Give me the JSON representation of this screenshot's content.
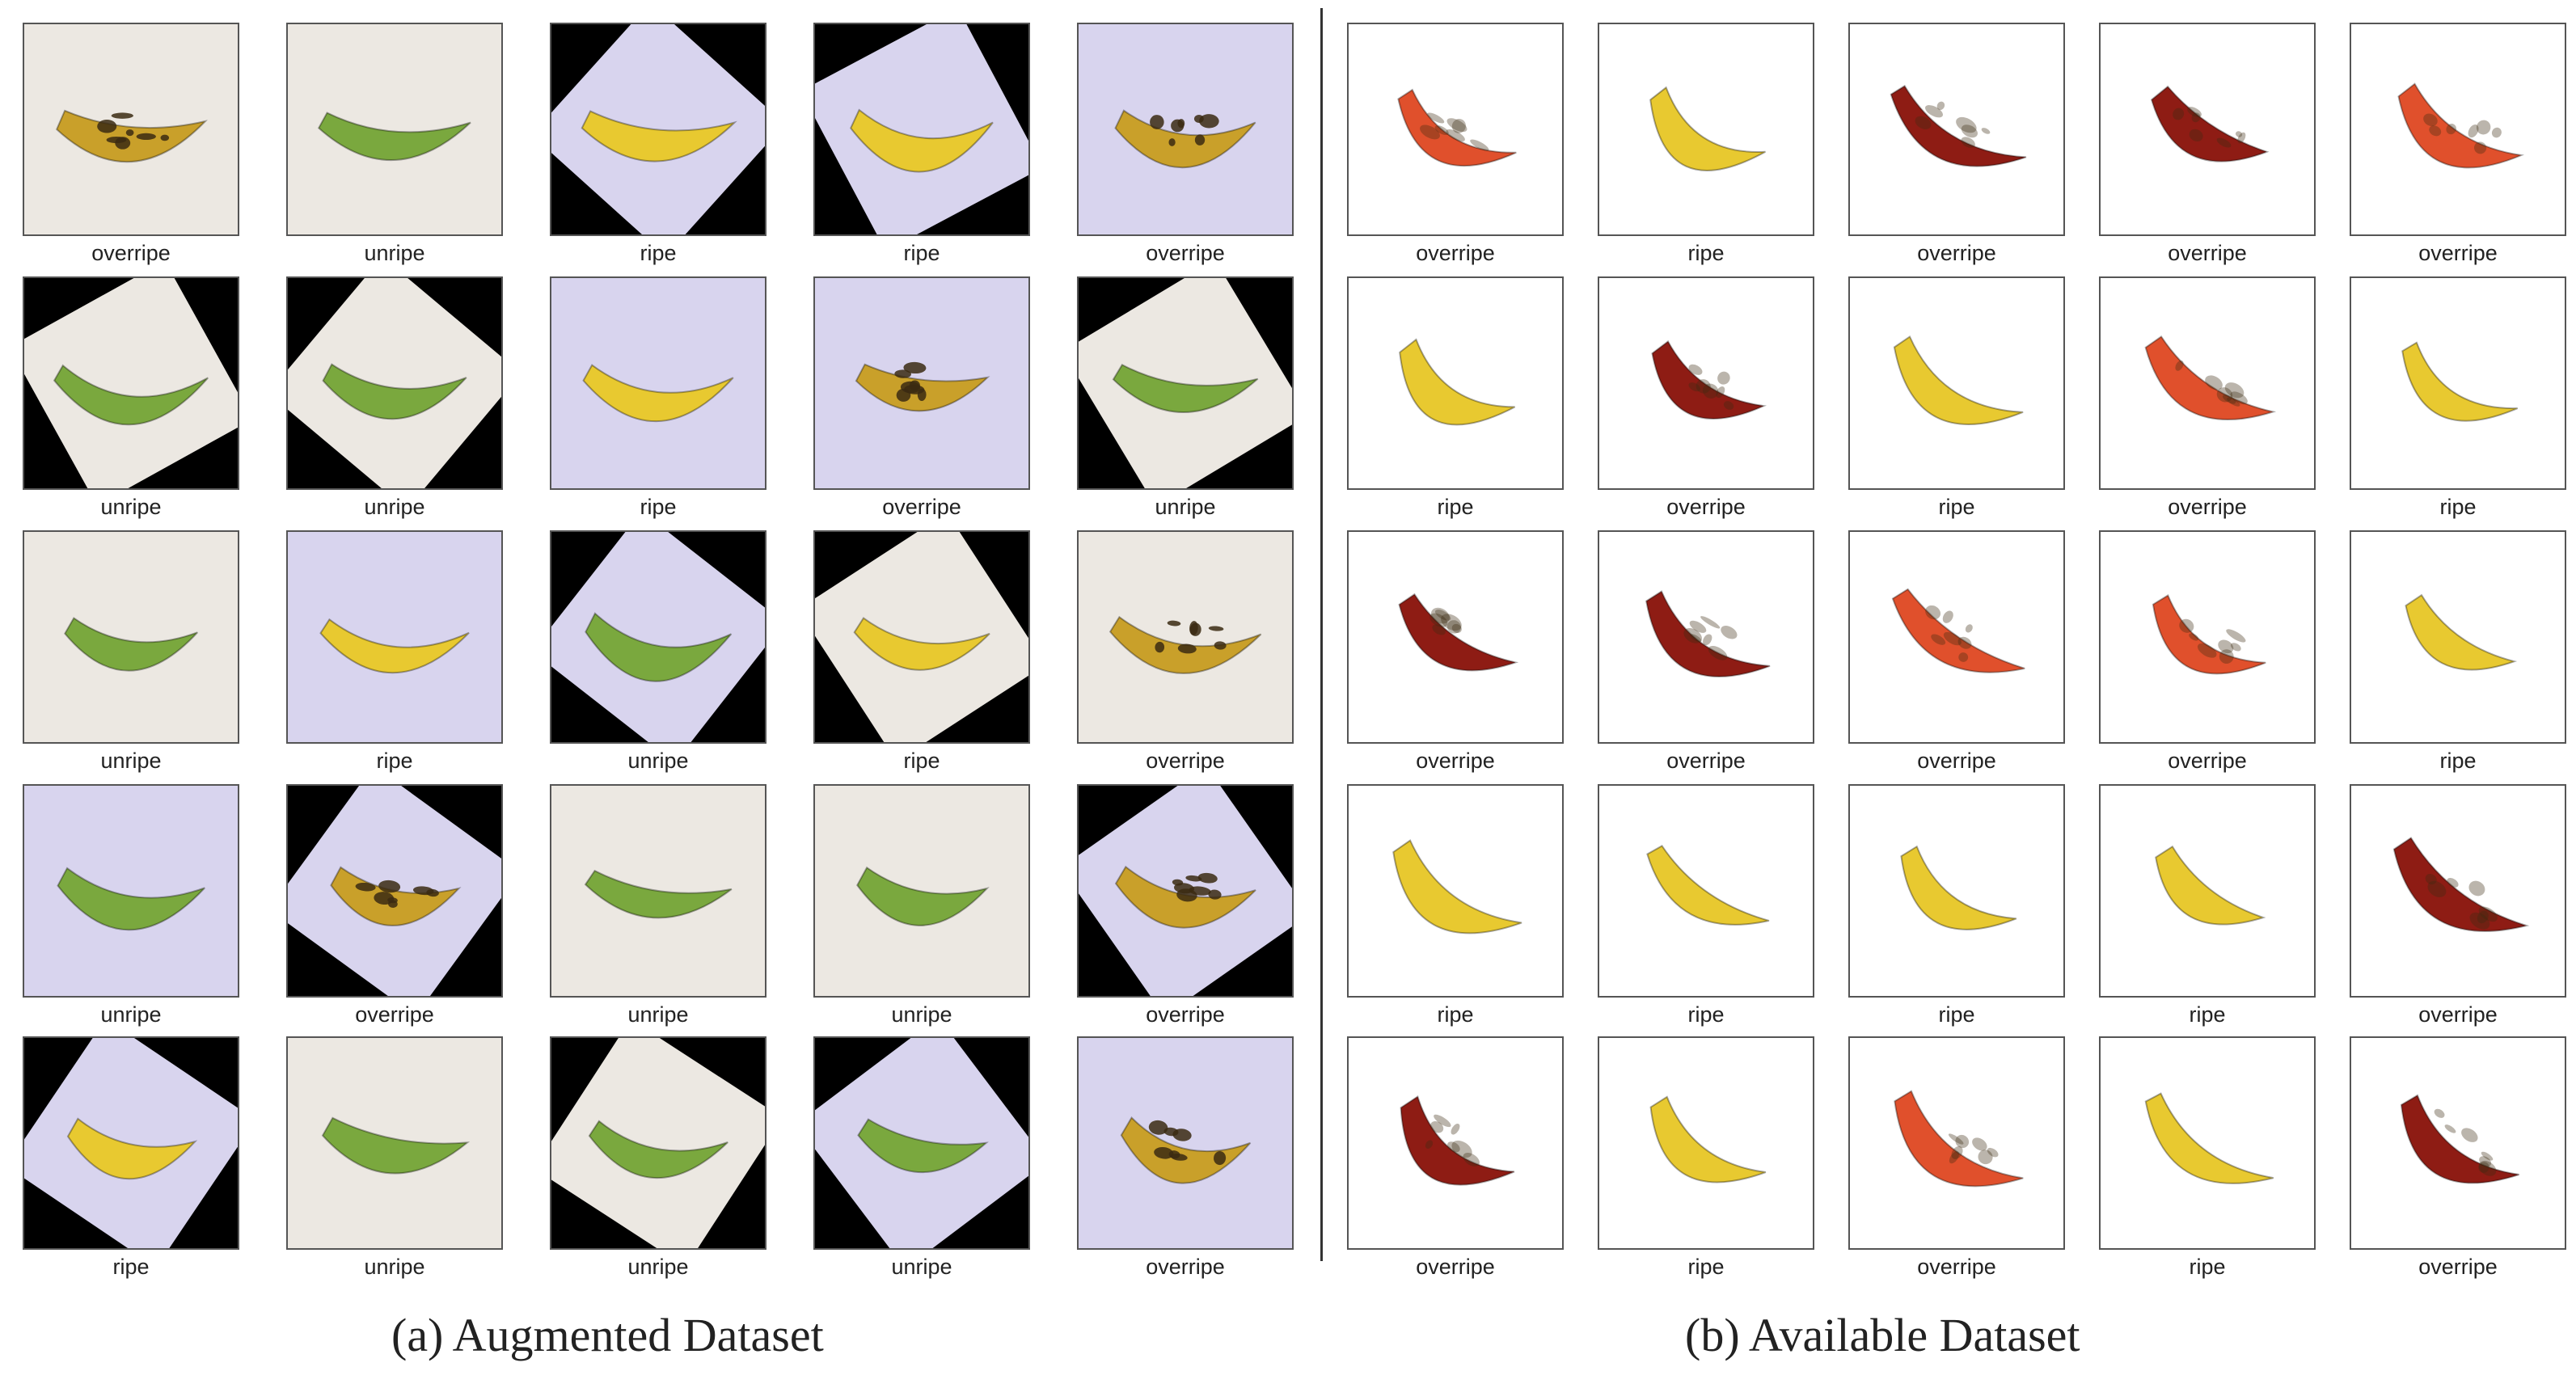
{
  "panel_a": {
    "caption": "(a) Augmented  Dataset",
    "rows": [
      [
        "overripe",
        "unripe",
        "ripe",
        "ripe",
        "overripe"
      ],
      [
        "unripe",
        "unripe",
        "ripe",
        "overripe",
        "unripe"
      ],
      [
        "unripe",
        "ripe",
        "unripe",
        "ripe",
        "overripe"
      ],
      [
        "unripe",
        "overripe",
        "unripe",
        "unripe",
        "overripe"
      ],
      [
        "ripe",
        "unripe",
        "unripe",
        "unripe",
        "overripe"
      ]
    ]
  },
  "panel_b": {
    "caption": "(b) Available Dataset",
    "rows": [
      [
        "overripe",
        "ripe",
        "overripe",
        "overripe",
        "overripe"
      ],
      [
        "ripe",
        "overripe",
        "ripe",
        "overripe",
        "ripe"
      ],
      [
        "overripe",
        "overripe",
        "overripe",
        "overripe",
        "ripe"
      ],
      [
        "ripe",
        "ripe",
        "ripe",
        "ripe",
        "overripe"
      ],
      [
        "overripe",
        "ripe",
        "overripe",
        "ripe",
        "overripe"
      ]
    ]
  },
  "colors": {
    "ripe_banana": "#e8c930",
    "unripe_banana": "#7aa83e",
    "overripe_banana": "#c9a02a",
    "overripe_spots": "#3b2a12",
    "red_banana": "#8e1c14",
    "orange_banana": "#e0502c",
    "lavender_bg": "#d8d4ee",
    "white_bg": "#ffffff",
    "border": "#555555"
  }
}
